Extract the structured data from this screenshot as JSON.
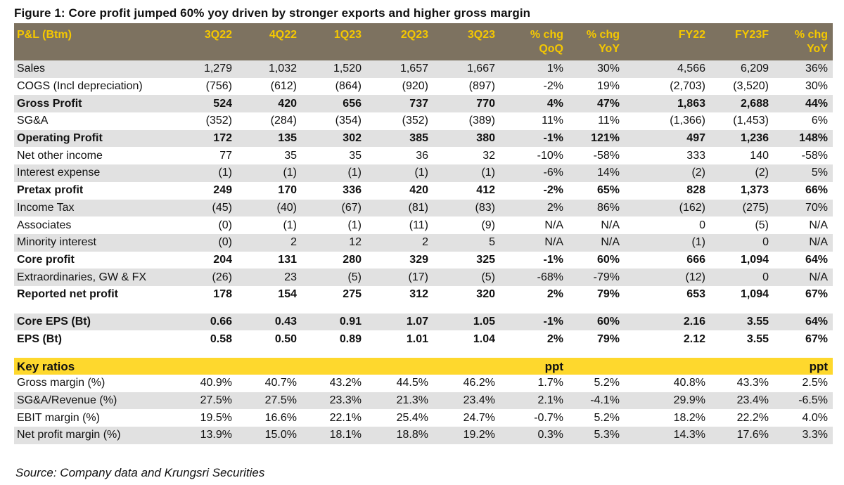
{
  "title": "Figure 1: Core profit jumped 60% yoy driven by stronger exports and higher gross margin",
  "header": {
    "row1": [
      "P&L (Btm)",
      "3Q22",
      "4Q22",
      "1Q23",
      "2Q23",
      "3Q23",
      "% chg",
      "% chg",
      "FY22",
      "FY23F",
      "% chg"
    ],
    "row2": [
      "",
      "",
      "",
      "",
      "",
      "",
      "QoQ",
      "YoY",
      "",
      "",
      "YoY"
    ]
  },
  "rows": [
    {
      "cells": [
        "Sales",
        "1,279",
        "1,032",
        "1,520",
        "1,657",
        "1,667",
        "1%",
        "30%",
        "4,566",
        "6,209",
        "36%"
      ],
      "shade": true,
      "bold": false
    },
    {
      "cells": [
        "COGS (Incl depreciation)",
        "(756)",
        "(612)",
        "(864)",
        "(920)",
        "(897)",
        "-2%",
        "19%",
        "(2,703)",
        "(3,520)",
        "30%"
      ],
      "shade": false,
      "bold": false
    },
    {
      "cells": [
        "Gross Profit",
        "524",
        "420",
        "656",
        "737",
        "770",
        "4%",
        "47%",
        "1,863",
        "2,688",
        "44%"
      ],
      "shade": true,
      "bold": true
    },
    {
      "cells": [
        "SG&A",
        "(352)",
        "(284)",
        "(354)",
        "(352)",
        "(389)",
        "11%",
        "11%",
        "(1,366)",
        "(1,453)",
        "6%"
      ],
      "shade": false,
      "bold": false
    },
    {
      "cells": [
        "Operating Profit",
        "172",
        "135",
        "302",
        "385",
        "380",
        "-1%",
        "121%",
        "497",
        "1,236",
        "148%"
      ],
      "shade": true,
      "bold": true
    },
    {
      "cells": [
        "Net other income",
        "77",
        "35",
        "35",
        "36",
        "32",
        "-10%",
        "-58%",
        "333",
        "140",
        "-58%"
      ],
      "shade": false,
      "bold": false
    },
    {
      "cells": [
        "Interest expense",
        "(1)",
        "(1)",
        "(1)",
        "(1)",
        "(1)",
        "-6%",
        "14%",
        "(2)",
        "(2)",
        "5%"
      ],
      "shade": true,
      "bold": false
    },
    {
      "cells": [
        "Pretax profit",
        "249",
        "170",
        "336",
        "420",
        "412",
        "-2%",
        "65%",
        "828",
        "1,373",
        "66%"
      ],
      "shade": false,
      "bold": true
    },
    {
      "cells": [
        "Income Tax",
        "(45)",
        "(40)",
        "(67)",
        "(81)",
        "(83)",
        "2%",
        "86%",
        "(162)",
        "(275)",
        "70%"
      ],
      "shade": true,
      "bold": false
    },
    {
      "cells": [
        "Associates",
        "(0)",
        "(1)",
        "(1)",
        "(11)",
        "(9)",
        "N/A",
        "N/A",
        "0",
        "(5)",
        "N/A"
      ],
      "shade": false,
      "bold": false
    },
    {
      "cells": [
        "Minority interest",
        "(0)",
        "2",
        "12",
        "2",
        "5",
        "N/A",
        "N/A",
        "(1)",
        "0",
        "N/A"
      ],
      "shade": true,
      "bold": false
    },
    {
      "cells": [
        "Core profit",
        "204",
        "131",
        "280",
        "329",
        "325",
        "-1%",
        "60%",
        "666",
        "1,094",
        "64%"
      ],
      "shade": false,
      "bold": true
    },
    {
      "cells": [
        "Extraordinaries, GW & FX",
        "(26)",
        "23",
        "(5)",
        "(17)",
        "(5)",
        "-68%",
        "-79%",
        "(12)",
        "0",
        "N/A"
      ],
      "shade": true,
      "bold": false
    },
    {
      "cells": [
        "Reported net profit",
        "178",
        "154",
        "275",
        "312",
        "320",
        "2%",
        "79%",
        "653",
        "1,094",
        "67%"
      ],
      "shade": false,
      "bold": true
    }
  ],
  "eps_rows": [
    {
      "cells": [
        "Core EPS (Bt)",
        "0.66",
        "0.43",
        "0.91",
        "1.07",
        "1.05",
        "-1%",
        "60%",
        "2.16",
        "3.55",
        "64%"
      ],
      "shade": true,
      "bold": true
    },
    {
      "cells": [
        "EPS (Bt)",
        "0.58",
        "0.50",
        "0.89",
        "1.01",
        "1.04",
        "2%",
        "79%",
        "2.12",
        "3.55",
        "67%"
      ],
      "shade": false,
      "bold": true
    }
  ],
  "key_ratios_header": [
    "Key ratios",
    "",
    "",
    "",
    "",
    "",
    "ppt",
    "",
    "",
    "",
    "ppt"
  ],
  "ratio_rows": [
    {
      "cells": [
        "Gross margin (%)",
        "40.9%",
        "40.7%",
        "43.2%",
        "44.5%",
        "46.2%",
        "1.7%",
        "5.2%",
        "40.8%",
        "43.3%",
        "2.5%"
      ],
      "shade": false,
      "bold": false
    },
    {
      "cells": [
        "SG&A/Revenue (%)",
        "27.5%",
        "27.5%",
        "23.3%",
        "21.3%",
        "23.4%",
        "2.1%",
        "-4.1%",
        "29.9%",
        "23.4%",
        "-6.5%"
      ],
      "shade": true,
      "bold": false
    },
    {
      "cells": [
        "EBIT margin (%)",
        "19.5%",
        "16.6%",
        "22.1%",
        "25.4%",
        "24.7%",
        "-0.7%",
        "5.2%",
        "18.2%",
        "22.2%",
        "4.0%"
      ],
      "shade": false,
      "bold": false
    },
    {
      "cells": [
        "Net profit margin (%)",
        "13.9%",
        "15.0%",
        "18.1%",
        "18.8%",
        "19.2%",
        "0.3%",
        "5.3%",
        "14.3%",
        "17.6%",
        "3.3%"
      ],
      "shade": true,
      "bold": false
    }
  ],
  "source": "Source: Company data and Krungsri Securities"
}
